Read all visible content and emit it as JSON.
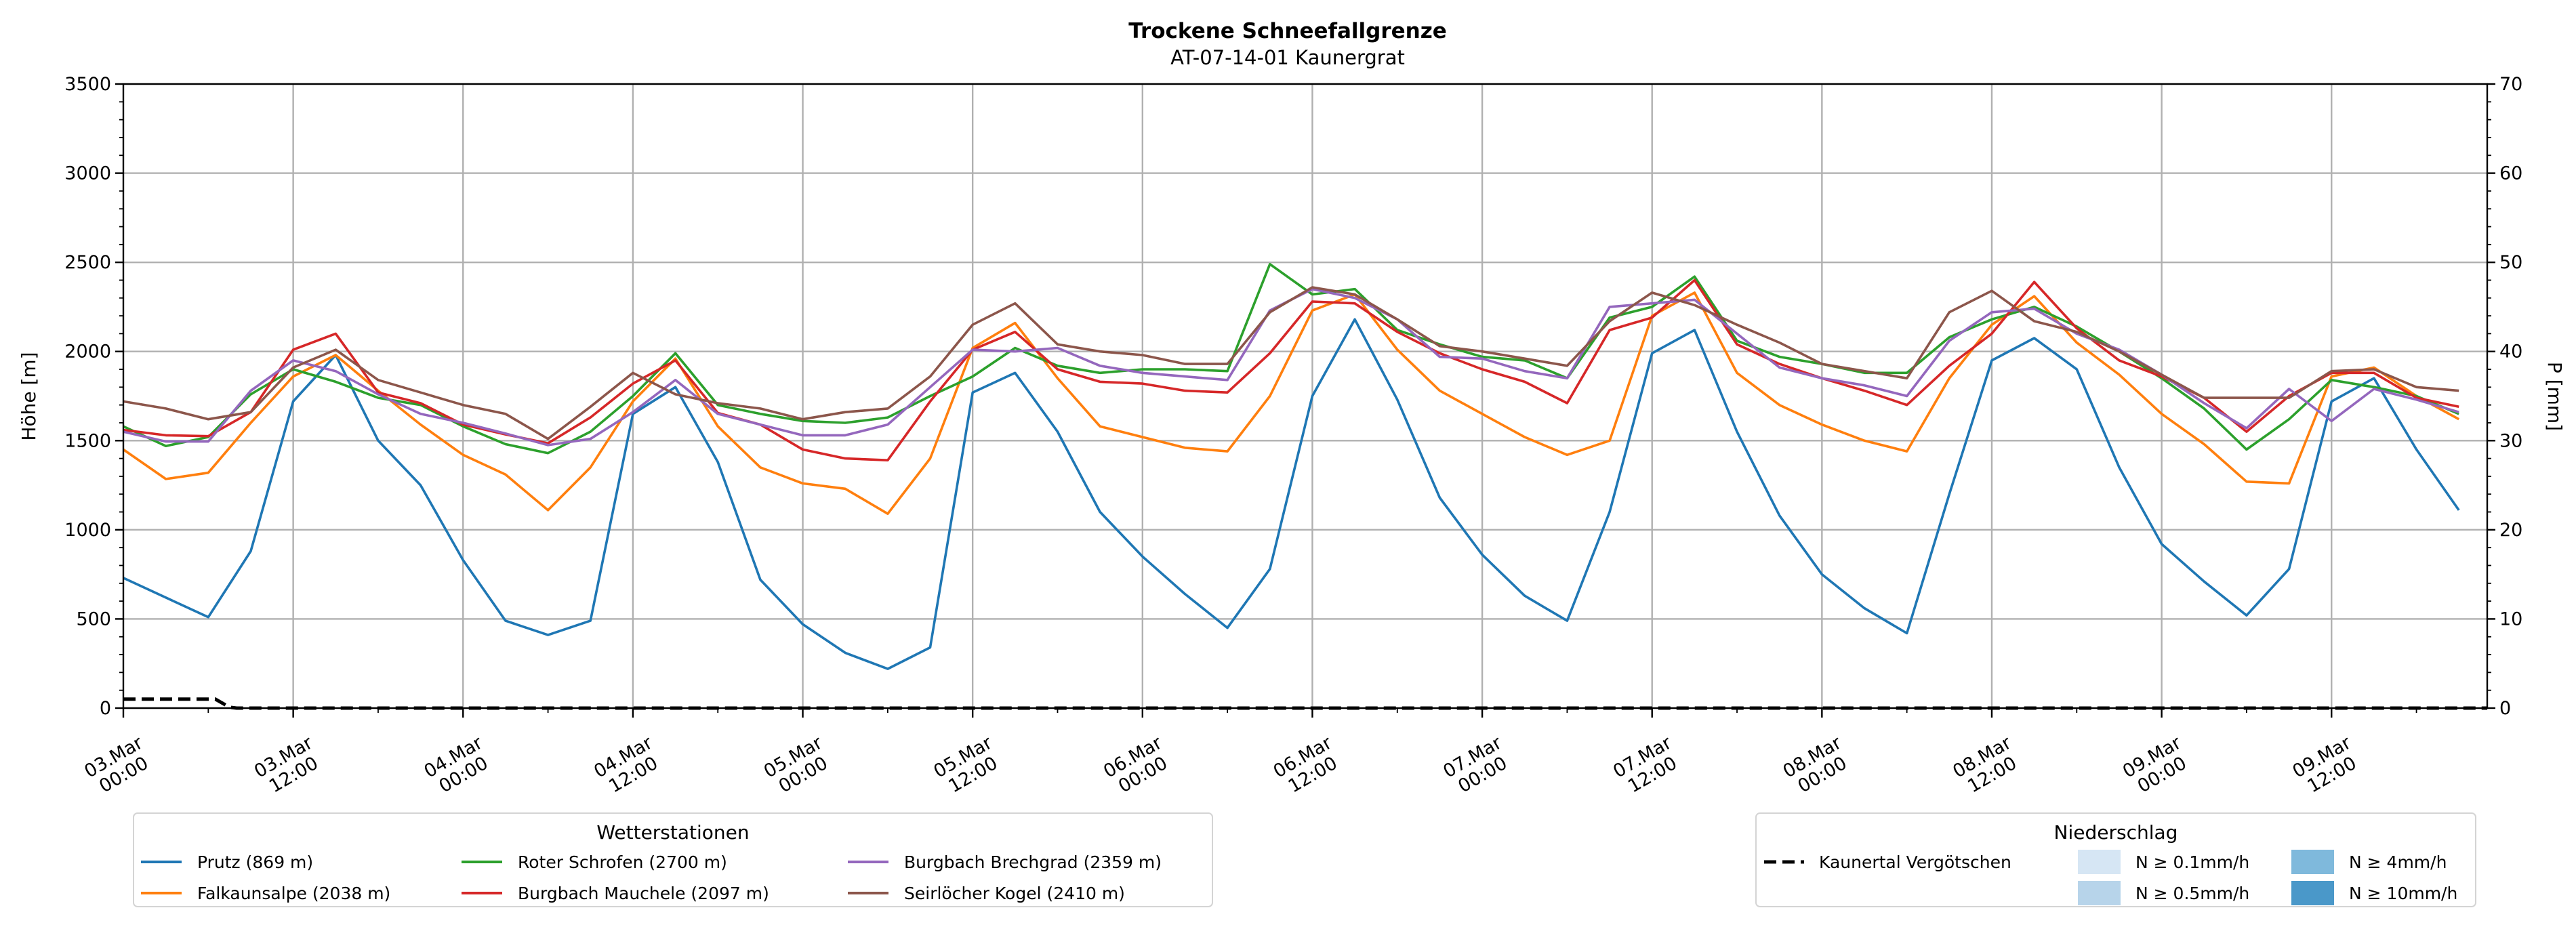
{
  "chart_data": {
    "type": "line",
    "title": "Trockene Schneefallgrenze",
    "subtitle": "AT-07-14-01 Kaunergrat",
    "ylabel": "Höhe [m]",
    "y2label": "P [mm]",
    "ylim": [
      0,
      3500
    ],
    "y2lim": [
      0,
      70
    ],
    "xlim_hours": [
      0,
      167
    ],
    "grid": true,
    "yticks": [
      0,
      500,
      1000,
      1500,
      2000,
      2500,
      3000,
      3500
    ],
    "y2ticks": [
      0,
      10,
      20,
      30,
      40,
      50,
      60,
      70
    ],
    "xticks_hours": [
      0,
      12,
      24,
      36,
      48,
      60,
      72,
      84,
      96,
      108,
      120,
      132,
      144,
      156
    ],
    "xtick_labels": [
      [
        "03.Mar",
        "00:00"
      ],
      [
        "03.Mar",
        "12:00"
      ],
      [
        "04.Mar",
        "00:00"
      ],
      [
        "04.Mar",
        "12:00"
      ],
      [
        "05.Mar",
        "00:00"
      ],
      [
        "05.Mar",
        "12:00"
      ],
      [
        "06.Mar",
        "00:00"
      ],
      [
        "06.Mar",
        "12:00"
      ],
      [
        "07.Mar",
        "00:00"
      ],
      [
        "07.Mar",
        "12:00"
      ],
      [
        "08.Mar",
        "00:00"
      ],
      [
        "08.Mar",
        "12:00"
      ],
      [
        "09.Mar",
        "00:00"
      ],
      [
        "09.Mar",
        "12:00"
      ]
    ],
    "x_hours": [
      0,
      3,
      6,
      9,
      12,
      15,
      18,
      21,
      24,
      27,
      30,
      33,
      36,
      39,
      42,
      45,
      48,
      51,
      54,
      57,
      60,
      63,
      66,
      69,
      72,
      75,
      78,
      81,
      84,
      87,
      90,
      93,
      96,
      99,
      102,
      105,
      108,
      111,
      114,
      117,
      120,
      123,
      126,
      129,
      132,
      135,
      138,
      141,
      144,
      147,
      150,
      153,
      156,
      159,
      162,
      165
    ],
    "series": [
      {
        "name": "Prutz (869 m)",
        "color": "#1f77b4",
        "values": [
          730,
          620,
          510,
          880,
          1720,
          1980,
          1500,
          1250,
          830,
          490,
          410,
          490,
          1650,
          1800,
          1380,
          720,
          470,
          310,
          220,
          340,
          1770,
          1880,
          1550,
          1100,
          850,
          640,
          450,
          780,
          1750,
          2180,
          1730,
          1180,
          860,
          630,
          490,
          1100,
          1990,
          2120,
          1550,
          1080,
          750,
          560,
          420,
          1200,
          1950,
          2075,
          1900,
          1350,
          920,
          710,
          520,
          780,
          1720,
          1850,
          1450,
          1110
        ]
      },
      {
        "name": "Falkaunsalpe (2038 m)",
        "color": "#ff7f0e",
        "values": [
          1450,
          1285,
          1320,
          1600,
          1860,
          1980,
          1780,
          1590,
          1420,
          1310,
          1110,
          1350,
          1720,
          1960,
          1580,
          1350,
          1260,
          1230,
          1090,
          1400,
          2020,
          2160,
          1850,
          1580,
          1520,
          1460,
          1440,
          1750,
          2230,
          2320,
          2010,
          1780,
          1650,
          1520,
          1420,
          1500,
          2200,
          2330,
          1880,
          1700,
          1590,
          1500,
          1440,
          1850,
          2150,
          2310,
          2050,
          1870,
          1650,
          1480,
          1270,
          1260,
          1860,
          1910,
          1750,
          1620
        ]
      },
      {
        "name": "Roter Schrofen (2700 m)",
        "color": "#2ca02c",
        "values": [
          1580,
          1470,
          1520,
          1760,
          1900,
          1830,
          1740,
          1700,
          1580,
          1480,
          1430,
          1550,
          1750,
          1990,
          1700,
          1650,
          1610,
          1600,
          1630,
          1750,
          1860,
          2020,
          1920,
          1880,
          1900,
          1900,
          1890,
          2490,
          2320,
          2350,
          2120,
          2040,
          1970,
          1950,
          1850,
          2190,
          2250,
          2420,
          2060,
          1970,
          1930,
          1880,
          1880,
          2080,
          2180,
          2250,
          2140,
          2000,
          1850,
          1680,
          1450,
          1620,
          1840,
          1800,
          1750,
          1650
        ]
      },
      {
        "name": "Burgbach Mauchele (2097 m)",
        "color": "#d62728",
        "values": [
          1560,
          1530,
          1525,
          1660,
          2010,
          2100,
          1770,
          1710,
          1590,
          1535,
          1485,
          1630,
          1820,
          1950,
          1655,
          1590,
          1450,
          1400,
          1390,
          1720,
          2010,
          2110,
          1900,
          1830,
          1820,
          1780,
          1770,
          1990,
          2280,
          2270,
          2110,
          1990,
          1900,
          1830,
          1710,
          2120,
          2190,
          2400,
          2040,
          1930,
          1850,
          1780,
          1700,
          1920,
          2100,
          2390,
          2130,
          1950,
          1860,
          1740,
          1550,
          1750,
          1880,
          1880,
          1740,
          1690
        ]
      },
      {
        "name": "Burgbach Brechgrad (2359 m)",
        "color": "#9467bd",
        "values": [
          1550,
          1495,
          1495,
          1780,
          1950,
          1890,
          1760,
          1650,
          1600,
          1540,
          1475,
          1510,
          1660,
          1840,
          1650,
          1590,
          1530,
          1530,
          1590,
          1800,
          2010,
          2000,
          2020,
          1920,
          1880,
          1860,
          1840,
          2230,
          2350,
          2300,
          2180,
          1970,
          1960,
          1890,
          1850,
          2250,
          2270,
          2290,
          2100,
          1910,
          1850,
          1810,
          1750,
          2060,
          2220,
          2240,
          2100,
          2010,
          1870,
          1710,
          1570,
          1790,
          1610,
          1790,
          1730,
          1660
        ]
      },
      {
        "name": "Seirlöcher Kogel (2410 m)",
        "color": "#8c564b",
        "values": [
          1720,
          1680,
          1620,
          1660,
          1910,
          2010,
          1840,
          1770,
          1700,
          1650,
          1510,
          1690,
          1880,
          1760,
          1710,
          1680,
          1620,
          1660,
          1680,
          1860,
          2150,
          2270,
          2040,
          2000,
          1980,
          1930,
          1930,
          2220,
          2360,
          2320,
          2180,
          2030,
          2000,
          1960,
          1920,
          2170,
          2330,
          2260,
          2150,
          2050,
          1930,
          1890,
          1850,
          2220,
          2340,
          2170,
          2110,
          2000,
          1870,
          1740,
          1740,
          1740,
          1890,
          1900,
          1800,
          1780
        ]
      }
    ],
    "precip_series": {
      "name": "Kaunertal Vergötschen",
      "color": "#000000",
      "points": [
        [
          0,
          1
        ],
        [
          6.5,
          1
        ],
        [
          7.5,
          0.1
        ],
        [
          8,
          0
        ],
        [
          167,
          0
        ]
      ]
    },
    "legend_stations": {
      "title": "Wetterstationen",
      "placement": "bottom-left"
    },
    "legend_precip": {
      "title": "Niederschlag",
      "placement": "bottom-right",
      "classes": [
        {
          "label": "N ≥ 0.1mm/h",
          "color": "#d6e6f4"
        },
        {
          "label": "N ≥ 0.5mm/h",
          "color": "#b7d4ea"
        },
        {
          "label": "N ≥ 4mm/h",
          "color": "#7fb9dc"
        },
        {
          "label": "N ≥ 10mm/h",
          "color": "#4a98c9"
        }
      ]
    }
  }
}
